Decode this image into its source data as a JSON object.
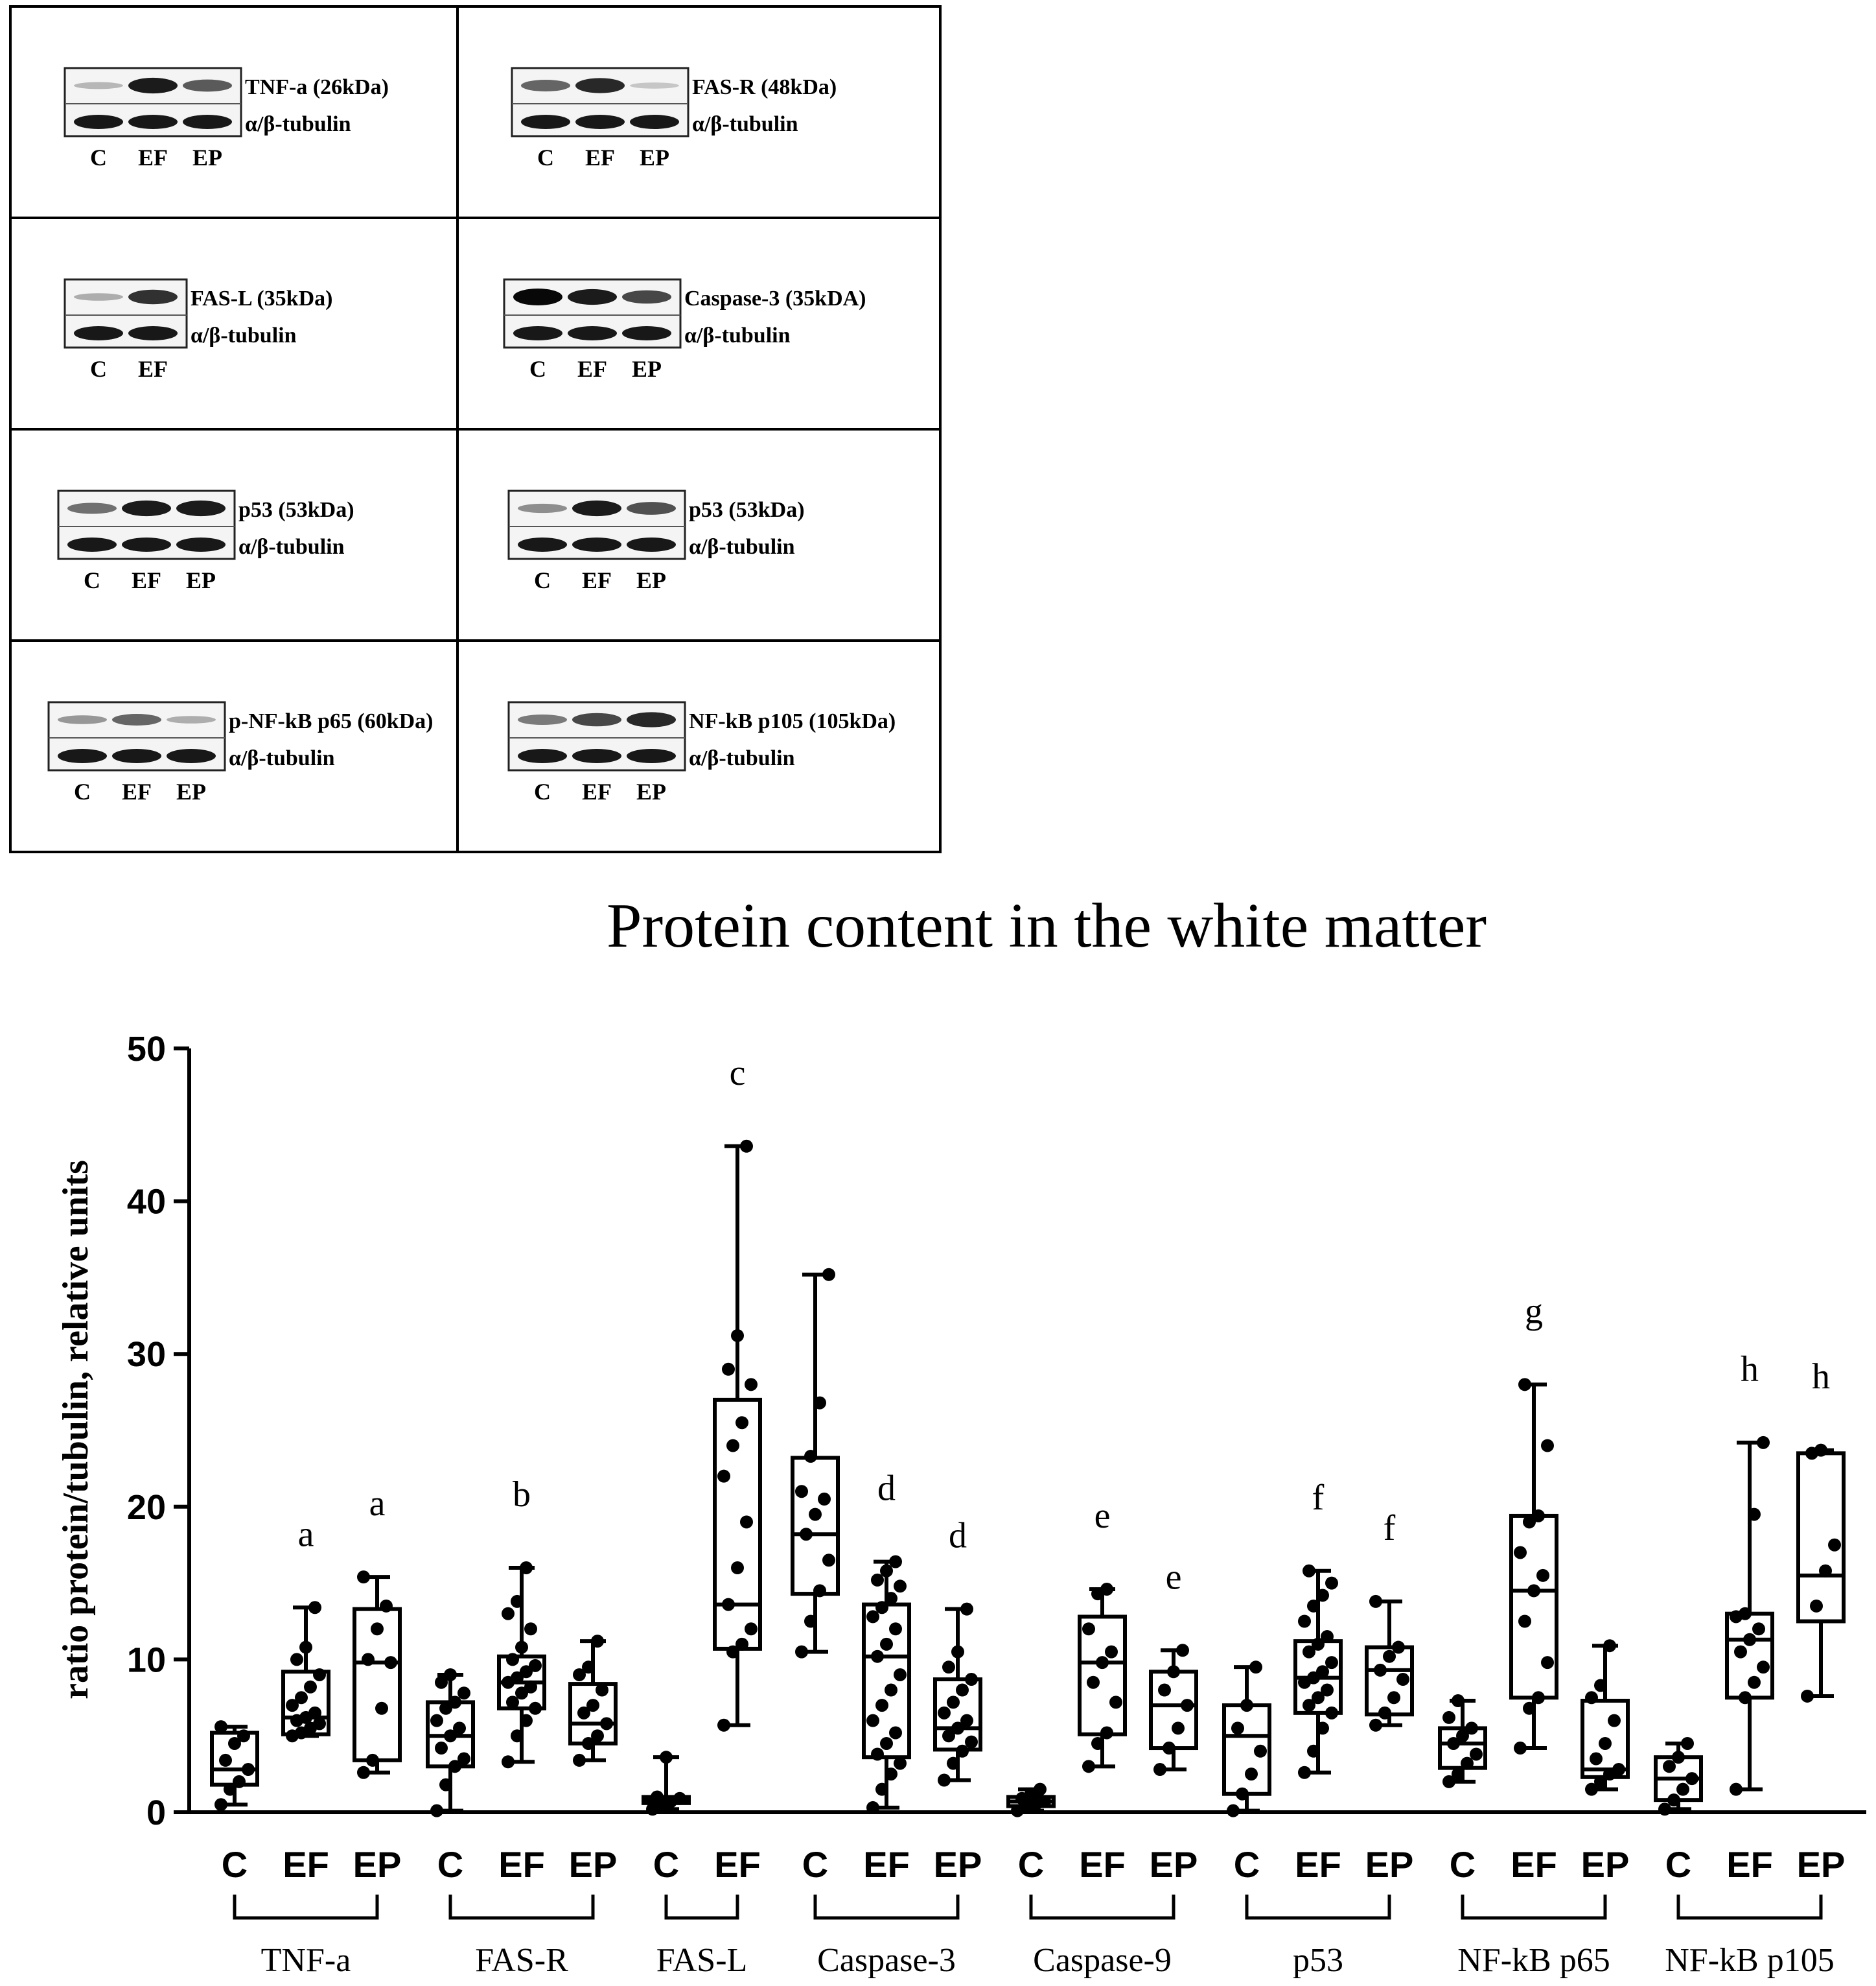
{
  "blot_panels": [
    {
      "protein_label": "TNF-a (26kDa)",
      "tubulin_label": "α/β-tubulin",
      "lanes": [
        "C",
        "EF",
        "EP"
      ],
      "band_intensity": [
        0.15,
        0.9,
        0.6
      ]
    },
    {
      "protein_label": "FAS-R (48kDa)",
      "tubulin_label": "α/β-tubulin",
      "lanes": [
        "C",
        "EF",
        "EP"
      ],
      "band_intensity": [
        0.55,
        0.85,
        0.08
      ]
    },
    {
      "protein_label": "FAS-L (35kDa)",
      "tubulin_label": "α/β-tubulin",
      "lanes": [
        "C",
        "EF"
      ],
      "band_intensity": [
        0.2,
        0.8
      ]
    },
    {
      "protein_label": "Caspase-3 (35kDA)",
      "tubulin_label": "α/β-tubulin",
      "lanes": [
        "C",
        "EF",
        "EP"
      ],
      "band_intensity": [
        1.0,
        0.9,
        0.7
      ]
    },
    {
      "protein_label": "p53 (53kDa)",
      "tubulin_label": "α/β-tubulin",
      "lanes": [
        "C",
        "EF",
        "EP"
      ],
      "band_intensity": [
        0.5,
        0.9,
        0.9
      ]
    },
    {
      "protein_label": "p53 (53kDa)",
      "tubulin_label": "α/β-tubulin",
      "lanes": [
        "C",
        "EF",
        "EP"
      ],
      "band_intensity": [
        0.35,
        0.9,
        0.65
      ]
    },
    {
      "protein_label": "p-NF-kB p65 (60kDa)",
      "tubulin_label": "α/β-tubulin",
      "lanes": [
        "C",
        "EF",
        "EP"
      ],
      "band_intensity": [
        0.3,
        0.55,
        0.2
      ]
    },
    {
      "protein_label": "NF-kB p105 (105kDa)",
      "tubulin_label": "α/β-tubulin",
      "lanes": [
        "C",
        "EF",
        "EP"
      ],
      "band_intensity": [
        0.45,
        0.7,
        0.85
      ]
    }
  ],
  "chart_data": {
    "type": "box",
    "title": "Protein content in the white matter",
    "ylabel": "ratio protein/tubulin, relative units",
    "ylim": [
      0,
      50
    ],
    "yticks": [
      0,
      10,
      20,
      30,
      40,
      50
    ],
    "groups": [
      {
        "name": "TNF-a",
        "boxes": [
          {
            "lane": "C",
            "min": 0.5,
            "q1": 1.8,
            "median": 2.8,
            "q3": 5.2,
            "max": 5.6,
            "letter": "",
            "points": [
              0.5,
              1.5,
              2.0,
              2.8,
              3.4,
              4.5,
              5.0,
              5.6
            ]
          },
          {
            "lane": "EF",
            "min": 5.0,
            "q1": 5.1,
            "median": 6.2,
            "q3": 9.2,
            "max": 13.4,
            "letter": "a",
            "points": [
              5.0,
              5.2,
              5.5,
              5.8,
              6.0,
              6.2,
              6.5,
              7.0,
              7.5,
              8.2,
              9.0,
              10.0,
              10.8,
              13.4
            ]
          },
          {
            "lane": "EP",
            "min": 2.6,
            "q1": 3.4,
            "median": 9.8,
            "q3": 13.3,
            "max": 15.4,
            "letter": "a",
            "points": [
              2.6,
              3.4,
              6.8,
              9.8,
              10.0,
              12.0,
              13.5,
              15.4
            ]
          }
        ]
      },
      {
        "name": "FAS-R",
        "boxes": [
          {
            "lane": "C",
            "min": 0.1,
            "q1": 3.0,
            "median": 5.0,
            "q3": 7.2,
            "max": 9.0,
            "letter": "",
            "points": [
              0.1,
              1.8,
              3.0,
              3.5,
              4.2,
              5.0,
              5.5,
              6.0,
              6.8,
              7.2,
              7.8,
              8.5,
              9.0
            ]
          },
          {
            "lane": "EF",
            "min": 3.3,
            "q1": 6.8,
            "median": 8.5,
            "q3": 10.2,
            "max": 16.0,
            "letter": "b",
            "points": [
              3.3,
              5.0,
              6.0,
              6.8,
              7.2,
              7.8,
              8.2,
              8.5,
              8.8,
              9.2,
              9.6,
              10.0,
              10.8,
              12.0,
              13.0,
              13.8,
              16.0
            ]
          },
          {
            "lane": "EP",
            "min": 3.4,
            "q1": 4.5,
            "median": 5.8,
            "q3": 8.4,
            "max": 11.2,
            "letter": "",
            "points": [
              3.4,
              4.5,
              5.0,
              5.8,
              6.5,
              7.0,
              8.0,
              9.0,
              9.5,
              11.2
            ]
          }
        ]
      },
      {
        "name": "FAS-L",
        "boxes": [
          {
            "lane": "C",
            "min": 0.2,
            "q1": 0.6,
            "median": 0.8,
            "q3": 1.0,
            "max": 3.6,
            "letter": "",
            "points": [
              0.2,
              0.5,
              0.7,
              0.9,
              1.0,
              3.6
            ]
          },
          {
            "lane": "EF",
            "min": 5.7,
            "q1": 10.7,
            "median": 13.6,
            "q3": 27.0,
            "max": 43.6,
            "letter": "c",
            "points": [
              5.7,
              10.5,
              11.0,
              12.0,
              13.6,
              16.0,
              19.0,
              22.0,
              24.0,
              25.5,
              28.0,
              29.0,
              31.2,
              43.6
            ]
          }
        ]
      },
      {
        "name": "Caspase-3",
        "boxes": [
          {
            "lane": "C",
            "min": 10.5,
            "q1": 14.3,
            "median": 18.2,
            "q3": 23.2,
            "max": 35.2,
            "letter": "",
            "points": [
              10.5,
              12.5,
              14.5,
              16.5,
              18.2,
              19.5,
              20.5,
              21.0,
              23.3,
              26.8,
              35.2
            ]
          },
          {
            "lane": "EF",
            "min": 0.3,
            "q1": 3.6,
            "median": 10.2,
            "q3": 13.6,
            "max": 16.4,
            "letter": "d",
            "points": [
              0.3,
              1.5,
              2.5,
              3.2,
              3.8,
              4.5,
              5.2,
              6.0,
              7.0,
              8.0,
              9.0,
              10.2,
              11.0,
              12.0,
              12.8,
              13.4,
              14.0,
              14.8,
              15.2,
              15.8,
              16.4
            ]
          },
          {
            "lane": "EP",
            "min": 2.1,
            "q1": 4.1,
            "median": 5.5,
            "q3": 8.7,
            "max": 13.3,
            "letter": "d",
            "points": [
              2.1,
              3.2,
              4.0,
              4.6,
              5.0,
              5.5,
              6.0,
              6.5,
              7.2,
              8.0,
              8.7,
              9.5,
              10.5,
              13.3
            ]
          }
        ]
      },
      {
        "name": "Caspase-9",
        "boxes": [
          {
            "lane": "C",
            "min": 0.1,
            "q1": 0.4,
            "median": 0.7,
            "q3": 1.0,
            "max": 1.5,
            "letter": "",
            "points": [
              0.1,
              0.3,
              0.5,
              0.7,
              0.9,
              1.2,
              1.5
            ]
          },
          {
            "lane": "EF",
            "min": 3.0,
            "q1": 5.1,
            "median": 9.8,
            "q3": 12.8,
            "max": 14.6,
            "letter": "e",
            "points": [
              3.0,
              4.5,
              5.2,
              7.2,
              8.5,
              9.8,
              10.5,
              12.0,
              14.3,
              14.6
            ]
          },
          {
            "lane": "EP",
            "min": 2.8,
            "q1": 4.2,
            "median": 7.0,
            "q3": 9.2,
            "max": 10.6,
            "letter": "e",
            "points": [
              2.8,
              4.2,
              5.5,
              7.0,
              8.0,
              9.2,
              10.6
            ]
          }
        ]
      },
      {
        "name": "p53",
        "boxes": [
          {
            "lane": "C",
            "min": 0.1,
            "q1": 1.2,
            "median": 5.0,
            "q3": 7.0,
            "max": 9.5,
            "letter": "",
            "points": [
              0.1,
              1.2,
              2.5,
              4.0,
              5.5,
              7.0,
              9.5
            ]
          },
          {
            "lane": "EF",
            "min": 2.6,
            "q1": 6.5,
            "median": 8.8,
            "q3": 11.2,
            "max": 15.8,
            "letter": "f",
            "points": [
              2.6,
              4.0,
              5.5,
              6.5,
              7.0,
              7.5,
              8.0,
              8.5,
              8.8,
              9.2,
              9.8,
              10.5,
              11.0,
              11.5,
              12.5,
              13.5,
              14.2,
              15.0,
              15.8
            ]
          },
          {
            "lane": "EP",
            "min": 5.7,
            "q1": 6.4,
            "median": 9.3,
            "q3": 10.8,
            "max": 13.8,
            "letter": "f",
            "points": [
              5.7,
              6.5,
              7.5,
              8.7,
              9.3,
              10.2,
              10.8,
              13.8
            ]
          }
        ]
      },
      {
        "name": "NF-kB p65",
        "boxes": [
          {
            "lane": "C",
            "min": 2.0,
            "q1": 2.9,
            "median": 4.5,
            "q3": 5.5,
            "max": 7.3,
            "letter": "",
            "points": [
              2.0,
              2.5,
              3.2,
              3.8,
              4.5,
              5.0,
              5.5,
              6.2,
              7.3
            ]
          },
          {
            "lane": "EF",
            "min": 4.2,
            "q1": 7.5,
            "median": 14.5,
            "q3": 19.4,
            "max": 28.0,
            "letter": "g",
            "points": [
              4.2,
              6.8,
              7.5,
              9.8,
              12.5,
              14.5,
              15.5,
              17.0,
              19.0,
              19.4,
              24.0,
              28.0
            ]
          },
          {
            "lane": "EP",
            "min": 1.5,
            "q1": 2.3,
            "median": 2.8,
            "q3": 7.3,
            "max": 10.9,
            "letter": "",
            "points": [
              1.5,
              2.0,
              2.5,
              2.8,
              3.5,
              4.5,
              6.0,
              7.5,
              8.3,
              10.9
            ]
          }
        ]
      },
      {
        "name": "NF-kB p105",
        "boxes": [
          {
            "lane": "C",
            "min": 0.2,
            "q1": 0.8,
            "median": 2.2,
            "q3": 3.6,
            "max": 4.5,
            "letter": "",
            "points": [
              0.2,
              0.8,
              1.5,
              2.2,
              3.0,
              3.6,
              4.5
            ]
          },
          {
            "lane": "EF",
            "min": 1.5,
            "q1": 7.5,
            "median": 11.3,
            "q3": 13.0,
            "max": 24.2,
            "letter": "h",
            "points": [
              1.5,
              7.5,
              8.5,
              9.5,
              10.5,
              11.3,
              12.0,
              12.8,
              13.0,
              19.5,
              24.2
            ]
          },
          {
            "lane": "EP",
            "min": 7.6,
            "q1": 12.5,
            "median": 15.5,
            "q3": 23.5,
            "max": 23.7,
            "letter": "h",
            "points": [
              7.6,
              13.5,
              15.8,
              17.5,
              23.5,
              23.7
            ]
          }
        ]
      }
    ]
  }
}
